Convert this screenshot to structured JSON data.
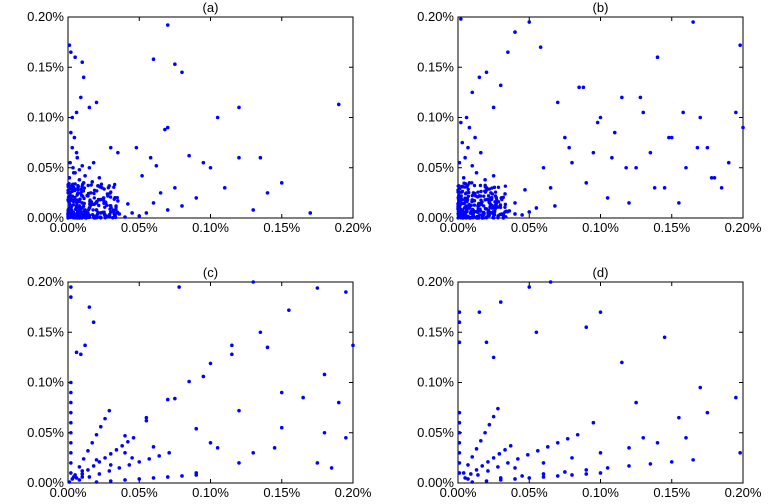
{
  "chart_data": [
    {
      "type": "scatter",
      "panel_label": "(a)",
      "xlim": [
        0,
        0.2
      ],
      "ylim": [
        0,
        0.2
      ],
      "x_ticks": [
        0,
        0.05,
        0.1,
        0.15,
        0.2
      ],
      "y_ticks": [
        0,
        0.05,
        0.1,
        0.15,
        0.2
      ],
      "x_tick_labels": [
        "0.00%",
        "0.05%",
        "0.10%",
        "0.15%",
        "0.20%"
      ],
      "y_tick_labels": [
        "0.00%",
        "0.05%",
        "0.10%",
        "0.15%",
        "0.20%"
      ],
      "grid": false,
      "marker_color": "#0000ff",
      "x": [
        0.0008,
        0.0012,
        0.0025,
        0.004,
        0.006,
        0.008,
        0.01,
        0.012,
        0.015,
        0.018,
        0.02,
        0.023,
        0.026,
        0.03,
        0.033,
        0.036,
        0.04,
        0.045,
        0.05,
        0.002,
        0.005,
        0.009,
        0.014,
        0.02,
        0.025,
        0.03,
        0.035,
        0.042,
        0.003,
        0.007,
        0.011,
        0.016,
        0.021,
        0.028,
        0.001,
        0.004,
        0.008,
        0.012,
        0.017,
        0.0015,
        0.0035,
        0.0065,
        0.01,
        0.003,
        0.006,
        0.002,
        0.0045,
        0.055,
        0.06,
        0.065,
        0.07,
        0.075,
        0.08,
        0.052,
        0.058,
        0.062,
        0.068,
        0.048,
        0.003,
        0.006,
        0.009,
        0.015,
        0.02,
        0.011,
        0.005,
        0.01,
        0.001,
        0.002,
        0.005,
        0.008,
        0.015,
        0.018,
        0.022,
        0.008,
        0.012,
        0.09,
        0.1,
        0.11,
        0.12,
        0.13,
        0.14,
        0.085,
        0.095,
        0.105,
        0.03,
        0.035,
        0.07,
        0.075,
        0.08,
        0.12,
        0.135,
        0.15,
        0.19,
        0.17,
        0.06,
        0.07,
        0.005,
        0.004,
        0.01
      ],
      "y": [
        0.001,
        0.005,
        0.008,
        0.003,
        0.012,
        0.006,
        0.015,
        0.004,
        0.01,
        0.002,
        0.008,
        0.005,
        0.003,
        0.006,
        0.002,
        0.004,
        0.001,
        0.005,
        0.002,
        0.02,
        0.018,
        0.025,
        0.022,
        0.015,
        0.02,
        0.012,
        0.017,
        0.014,
        0.03,
        0.028,
        0.035,
        0.025,
        0.032,
        0.022,
        0.04,
        0.045,
        0.038,
        0.042,
        0.036,
        0.055,
        0.05,
        0.06,
        0.052,
        0.07,
        0.065,
        0.085,
        0.08,
        0.005,
        0.015,
        0.025,
        0.008,
        0.03,
        0.012,
        0.042,
        0.06,
        0.052,
        0.088,
        0.07,
        0.1,
        0.105,
        0.12,
        0.11,
        0.115,
        0.14,
        0.16,
        0.155,
        0.172,
        0.165,
        0.045,
        0.048,
        0.05,
        0.055,
        0.04,
        0.012,
        0.008,
        0.02,
        0.05,
        0.03,
        0.06,
        0.008,
        0.025,
        0.062,
        0.055,
        0.1,
        0.07,
        0.065,
        0.09,
        0.153,
        0.145,
        0.11,
        0.06,
        0.035,
        0.113,
        0.005,
        0.158,
        0.192,
        0.003,
        0.002,
        0.001
      ]
    },
    {
      "type": "scatter",
      "panel_label": "(b)",
      "xlim": [
        0,
        0.2
      ],
      "ylim": [
        0,
        0.2
      ],
      "x_ticks": [
        0,
        0.05,
        0.1,
        0.15,
        0.2
      ],
      "y_ticks": [
        0,
        0.05,
        0.1,
        0.15,
        0.2
      ],
      "x_tick_labels": [
        "0.00%",
        "0.05%",
        "0.10%",
        "0.15%",
        "0.20%"
      ],
      "y_tick_labels": [
        "0.00%",
        "0.05%",
        "0.10%",
        "0.15%",
        "0.20%"
      ],
      "grid": false,
      "marker_color": "#0000ff",
      "x": [
        0.001,
        0.003,
        0.005,
        0.008,
        0.011,
        0.014,
        0.017,
        0.02,
        0.024,
        0.028,
        0.032,
        0.036,
        0.04,
        0.045,
        0.05,
        0.002,
        0.006,
        0.01,
        0.015,
        0.02,
        0.026,
        0.033,
        0.04,
        0.047,
        0.004,
        0.008,
        0.013,
        0.019,
        0.025,
        0.001,
        0.005,
        0.01,
        0.016,
        0.003,
        0.007,
        0.012,
        0.002,
        0.006,
        0.055,
        0.06,
        0.065,
        0.07,
        0.075,
        0.08,
        0.085,
        0.09,
        0.095,
        0.1,
        0.105,
        0.11,
        0.115,
        0.12,
        0.125,
        0.13,
        0.135,
        0.14,
        0.145,
        0.15,
        0.155,
        0.16,
        0.165,
        0.17,
        0.175,
        0.18,
        0.185,
        0.19,
        0.195,
        0.2,
        0.058,
        0.068,
        0.078,
        0.088,
        0.098,
        0.108,
        0.118,
        0.128,
        0.138,
        0.148,
        0.158,
        0.168,
        0.178,
        0.198,
        0.02,
        0.03,
        0.04,
        0.05,
        0.01,
        0.015,
        0.025,
        0.035,
        0.008,
        0.002
      ],
      "y": [
        0.002,
        0.008,
        0.004,
        0.01,
        0.006,
        0.012,
        0.003,
        0.009,
        0.005,
        0.011,
        0.002,
        0.007,
        0.004,
        0.003,
        0.006,
        0.02,
        0.025,
        0.018,
        0.022,
        0.03,
        0.016,
        0.024,
        0.015,
        0.028,
        0.04,
        0.035,
        0.045,
        0.038,
        0.042,
        0.055,
        0.06,
        0.052,
        0.065,
        0.075,
        0.07,
        0.08,
        0.095,
        0.1,
        0.01,
        0.05,
        0.03,
        0.115,
        0.08,
        0.055,
        0.13,
        0.035,
        0.065,
        0.1,
        0.02,
        0.085,
        0.12,
        0.015,
        0.05,
        0.105,
        0.065,
        0.16,
        0.03,
        0.08,
        0.015,
        0.05,
        0.195,
        0.1,
        0.07,
        0.04,
        0.03,
        0.055,
        0.105,
        0.09,
        0.17,
        0.012,
        0.07,
        0.13,
        0.095,
        0.06,
        0.05,
        0.12,
        0.03,
        0.08,
        0.105,
        0.07,
        0.04,
        0.172,
        0.145,
        0.132,
        0.185,
        0.195,
        0.125,
        0.14,
        0.11,
        0.165,
        0.09,
        0.198
      ]
    },
    {
      "type": "scatter",
      "panel_label": "(c)",
      "xlim": [
        0,
        0.2
      ],
      "ylim": [
        0,
        0.2
      ],
      "x_ticks": [
        0,
        0.05,
        0.1,
        0.15,
        0.2
      ],
      "y_ticks": [
        0,
        0.05,
        0.1,
        0.15,
        0.2
      ],
      "x_tick_labels": [
        "0.00%",
        "0.05%",
        "0.10%",
        "0.15%",
        "0.20%"
      ],
      "y_tick_labels": [
        "0.00%",
        "0.05%",
        "0.10%",
        "0.15%",
        "0.20%"
      ],
      "grid": false,
      "marker_color": "#0000ff",
      "x": [
        0.002,
        0.002,
        0.002,
        0.002,
        0.002,
        0.002,
        0.002,
        0.002,
        0.002,
        0.002,
        0.002,
        0.002,
        0.005,
        0.008,
        0.011,
        0.014,
        0.017,
        0.02,
        0.023,
        0.026,
        0.029,
        0.006,
        0.01,
        0.014,
        0.018,
        0.022,
        0.026,
        0.03,
        0.034,
        0.038,
        0.042,
        0.046,
        0.008,
        0.015,
        0.022,
        0.029,
        0.036,
        0.043,
        0.05,
        0.057,
        0.064,
        0.071,
        0.001,
        0.02,
        0.03,
        0.04,
        0.05,
        0.06,
        0.07,
        0.08,
        0.09,
        0.01,
        0.04,
        0.055,
        0.07,
        0.085,
        0.1,
        0.115,
        0.02,
        0.055,
        0.075,
        0.095,
        0.115,
        0.135,
        0.155,
        0.175,
        0.01,
        0.03,
        0.06,
        0.09,
        0.12,
        0.15,
        0.18,
        0.006,
        0.009,
        0.012,
        0.015,
        0.018,
        0.003,
        0.004,
        0.1,
        0.105,
        0.13,
        0.14,
        0.145,
        0.175,
        0.19,
        0.195,
        0.165,
        0.185,
        0.15,
        0.13,
        0.09,
        0.12,
        0.078,
        0.04,
        0.045,
        0.18,
        0.195,
        0.2
      ],
      "y": [
        0.01,
        0.02,
        0.03,
        0.04,
        0.05,
        0.06,
        0.07,
        0.08,
        0.09,
        0.1,
        0.185,
        0.195,
        0.008,
        0.016,
        0.024,
        0.032,
        0.04,
        0.048,
        0.056,
        0.064,
        0.072,
        0.005,
        0.009,
        0.013,
        0.017,
        0.021,
        0.025,
        0.029,
        0.033,
        0.037,
        0.041,
        0.045,
        0.003,
        0.006,
        0.009,
        0.012,
        0.015,
        0.018,
        0.021,
        0.024,
        0.027,
        0.03,
        0.001,
        0.001,
        0.002,
        0.003,
        0.004,
        0.005,
        0.006,
        0.007,
        0.008,
        0.012,
        0.047,
        0.065,
        0.083,
        0.101,
        0.119,
        0.137,
        0.023,
        0.062,
        0.084,
        0.106,
        0.128,
        0.15,
        0.172,
        0.194,
        0.006,
        0.018,
        0.036,
        0.054,
        0.072,
        0.09,
        0.108,
        0.13,
        0.128,
        0.137,
        0.175,
        0.16,
        0.004,
        0.006,
        0.04,
        0.035,
        0.03,
        0.135,
        0.035,
        0.02,
        0.08,
        0.19,
        0.085,
        0.015,
        0.055,
        0.2,
        0.01,
        0.02,
        0.195,
        0.03,
        0.025,
        0.05,
        0.045,
        0.137
      ]
    },
    {
      "type": "scatter",
      "panel_label": "(d)",
      "xlim": [
        0,
        0.2
      ],
      "ylim": [
        0,
        0.2
      ],
      "x_ticks": [
        0,
        0.05,
        0.1,
        0.15,
        0.2
      ],
      "y_ticks": [
        0,
        0.05,
        0.1,
        0.15,
        0.2
      ],
      "x_tick_labels": [
        "0.00%",
        "0.05%",
        "0.10%",
        "0.15%",
        "0.20%"
      ],
      "y_tick_labels": [
        "0.00%",
        "0.05%",
        "0.10%",
        "0.15%",
        "0.20%"
      ],
      "grid": false,
      "marker_color": "#0000ff",
      "x": [
        0.001,
        0.001,
        0.001,
        0.001,
        0.001,
        0.001,
        0.001,
        0.001,
        0.001,
        0.001,
        0.004,
        0.007,
        0.01,
        0.013,
        0.016,
        0.019,
        0.022,
        0.025,
        0.028,
        0.005,
        0.009,
        0.013,
        0.017,
        0.021,
        0.025,
        0.029,
        0.033,
        0.037,
        0.007,
        0.014,
        0.021,
        0.028,
        0.035,
        0.042,
        0.049,
        0.056,
        0.063,
        0.07,
        0.077,
        0.084,
        0.01,
        0.02,
        0.03,
        0.04,
        0.05,
        0.06,
        0.07,
        0.08,
        0.09,
        0.1,
        0.03,
        0.045,
        0.06,
        0.075,
        0.09,
        0.105,
        0.12,
        0.135,
        0.15,
        0.165,
        0.04,
        0.06,
        0.08,
        0.1,
        0.12,
        0.14,
        0.16,
        0.03,
        0.05,
        0.065,
        0.02,
        0.025,
        0.015,
        0.115,
        0.125,
        0.145,
        0.155,
        0.17,
        0.195,
        0.198,
        0.1,
        0.095,
        0.055,
        0.09,
        0.13,
        0.175
      ],
      "y": [
        0.01,
        0.02,
        0.03,
        0.04,
        0.05,
        0.06,
        0.07,
        0.14,
        0.16,
        0.17,
        0.01,
        0.018,
        0.026,
        0.034,
        0.042,
        0.05,
        0.058,
        0.066,
        0.074,
        0.005,
        0.009,
        0.013,
        0.017,
        0.021,
        0.025,
        0.029,
        0.033,
        0.037,
        0.004,
        0.008,
        0.012,
        0.016,
        0.02,
        0.024,
        0.028,
        0.032,
        0.036,
        0.04,
        0.044,
        0.048,
        0.001,
        0.002,
        0.003,
        0.004,
        0.005,
        0.006,
        0.007,
        0.008,
        0.009,
        0.01,
        0.005,
        0.007,
        0.009,
        0.011,
        0.013,
        0.015,
        0.017,
        0.019,
        0.021,
        0.023,
        0.015,
        0.02,
        0.025,
        0.03,
        0.035,
        0.04,
        0.045,
        0.18,
        0.195,
        0.2,
        0.14,
        0.125,
        0.17,
        0.12,
        0.08,
        0.145,
        0.065,
        0.095,
        0.085,
        0.03,
        0.17,
        0.06,
        0.15,
        0.155,
        0.045,
        0.07
      ]
    }
  ]
}
